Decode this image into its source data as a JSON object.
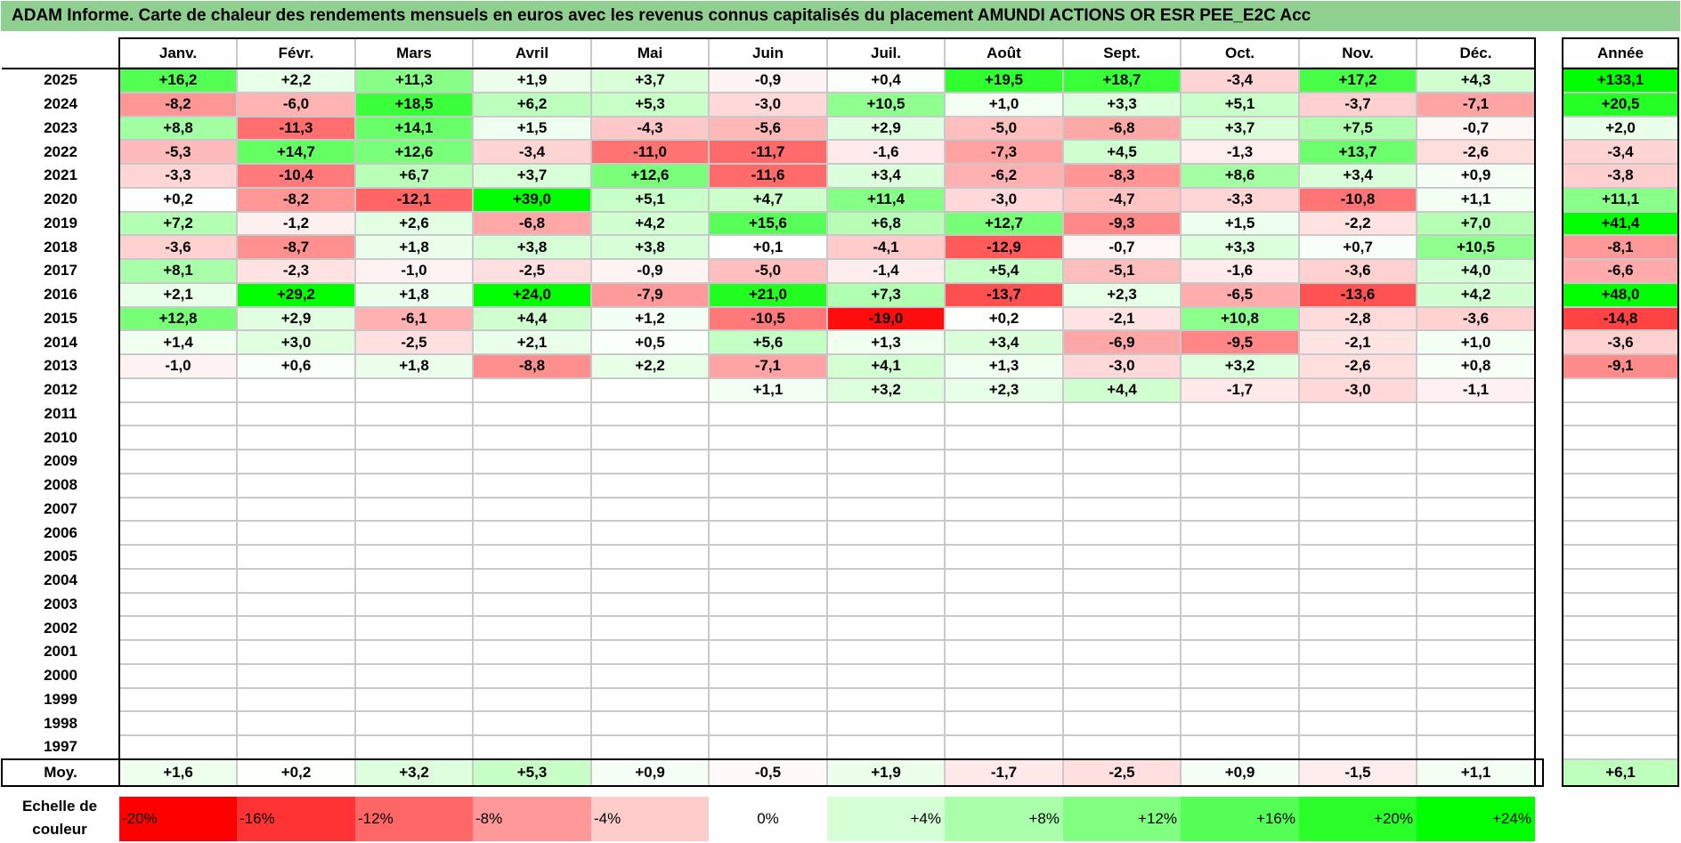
{
  "title": "ADAM Informe. Carte de chaleur des rendements mensuels en euros avec les revenus connus capitalisés du placement AMUNDI ACTIONS OR ESR PEE_E2C Acc",
  "chart_data": {
    "type": "heatmap",
    "title": "ADAM Informe. Carte de chaleur des rendements mensuels en euros avec les revenus connus capitalisés du placement AMUNDI ACTIONS OR ESR PEE_E2C Acc",
    "columns": [
      "Janv.",
      "Févr.",
      "Mars",
      "Avril",
      "Mai",
      "Juin",
      "Juil.",
      "Août",
      "Sept.",
      "Oct.",
      "Nov.",
      "Déc."
    ],
    "year_column_label": "Année",
    "years": [
      "2025",
      "2024",
      "2023",
      "2022",
      "2021",
      "2020",
      "2019",
      "2018",
      "2017",
      "2016",
      "2015",
      "2014",
      "2013",
      "2012",
      "2011",
      "2010",
      "2009",
      "2008",
      "2007",
      "2006",
      "2005",
      "2004",
      "2003",
      "2002",
      "2001",
      "2000",
      "1999",
      "1998",
      "1997"
    ],
    "values": [
      [
        "+16,2",
        "+2,2",
        "+11,3",
        "+1,9",
        "+3,7",
        "-0,9",
        "+0,4",
        "+19,5",
        "+18,7",
        "-3,4",
        "+17,2",
        "+4,3"
      ],
      [
        "-8,2",
        "-6,0",
        "+18,5",
        "+6,2",
        "+5,3",
        "-3,0",
        "+10,5",
        "+1,0",
        "+3,3",
        "+5,1",
        "-3,7",
        "-7,1"
      ],
      [
        "+8,8",
        "-11,3",
        "+14,1",
        "+1,5",
        "-4,3",
        "-5,6",
        "+2,9",
        "-5,0",
        "-6,8",
        "+3,7",
        "+7,5",
        "-0,7"
      ],
      [
        "-5,3",
        "+14,7",
        "+12,6",
        "-3,4",
        "-11,0",
        "-11,7",
        "-1,6",
        "-7,3",
        "+4,5",
        "-1,3",
        "+13,7",
        "-2,6"
      ],
      [
        "-3,3",
        "-10,4",
        "+6,7",
        "+3,7",
        "+12,6",
        "-11,6",
        "+3,4",
        "-6,2",
        "-8,3",
        "+8,6",
        "+3,4",
        "+0,9"
      ],
      [
        "+0,2",
        "-8,2",
        "-12,1",
        "+39,0",
        "+5,1",
        "+4,7",
        "+11,4",
        "-3,0",
        "-4,7",
        "-3,3",
        "-10,8",
        "+1,1"
      ],
      [
        "+7,2",
        "-1,2",
        "+2,6",
        "-6,8",
        "+4,2",
        "+15,6",
        "+6,8",
        "+12,7",
        "-9,3",
        "+1,5",
        "-2,2",
        "+7,0"
      ],
      [
        "-3,6",
        "-8,7",
        "+1,8",
        "+3,8",
        "+3,8",
        "+0,1",
        "-4,1",
        "-12,9",
        "-0,7",
        "+3,3",
        "+0,7",
        "+10,5"
      ],
      [
        "+8,1",
        "-2,3",
        "-1,0",
        "-2,5",
        "-0,9",
        "-5,0",
        "-1,4",
        "+5,4",
        "-5,1",
        "-1,6",
        "-3,6",
        "+4,0"
      ],
      [
        "+2,1",
        "+29,2",
        "+1,8",
        "+24,0",
        "-7,9",
        "+21,0",
        "+7,3",
        "-13,7",
        "+2,3",
        "-6,5",
        "-13,6",
        "+4,2"
      ],
      [
        "+12,8",
        "+2,9",
        "-6,1",
        "+4,4",
        "+1,2",
        "-10,5",
        "-19,0",
        "+0,2",
        "-2,1",
        "+10,8",
        "-2,8",
        "-3,6"
      ],
      [
        "+1,4",
        "+3,0",
        "-2,5",
        "+2,1",
        "+0,5",
        "+5,6",
        "+1,3",
        "+3,4",
        "-6,9",
        "-9,5",
        "-2,1",
        "+1,0"
      ],
      [
        "-1,0",
        "+0,6",
        "+1,8",
        "-8,8",
        "+2,2",
        "-7,1",
        "+4,1",
        "+1,3",
        "-3,0",
        "+3,2",
        "-2,6",
        "+0,8"
      ],
      [
        "",
        "",
        "",
        "",
        "",
        "+1,1",
        "+3,2",
        "+2,3",
        "+4,4",
        "-1,7",
        "-3,0",
        "-1,1"
      ],
      [
        "",
        "",
        "",
        "",
        "",
        "",
        "",
        "",
        "",
        "",
        "",
        ""
      ],
      [
        "",
        "",
        "",
        "",
        "",
        "",
        "",
        "",
        "",
        "",
        "",
        ""
      ],
      [
        "",
        "",
        "",
        "",
        "",
        "",
        "",
        "",
        "",
        "",
        "",
        ""
      ],
      [
        "",
        "",
        "",
        "",
        "",
        "",
        "",
        "",
        "",
        "",
        "",
        ""
      ],
      [
        "",
        "",
        "",
        "",
        "",
        "",
        "",
        "",
        "",
        "",
        "",
        ""
      ],
      [
        "",
        "",
        "",
        "",
        "",
        "",
        "",
        "",
        "",
        "",
        "",
        ""
      ],
      [
        "",
        "",
        "",
        "",
        "",
        "",
        "",
        "",
        "",
        "",
        "",
        ""
      ],
      [
        "",
        "",
        "",
        "",
        "",
        "",
        "",
        "",
        "",
        "",
        "",
        ""
      ],
      [
        "",
        "",
        "",
        "",
        "",
        "",
        "",
        "",
        "",
        "",
        "",
        ""
      ],
      [
        "",
        "",
        "",
        "",
        "",
        "",
        "",
        "",
        "",
        "",
        "",
        ""
      ],
      [
        "",
        "",
        "",
        "",
        "",
        "",
        "",
        "",
        "",
        "",
        "",
        ""
      ],
      [
        "",
        "",
        "",
        "",
        "",
        "",
        "",
        "",
        "",
        "",
        "",
        ""
      ],
      [
        "",
        "",
        "",
        "",
        "",
        "",
        "",
        "",
        "",
        "",
        "",
        ""
      ],
      [
        "",
        "",
        "",
        "",
        "",
        "",
        "",
        "",
        "",
        "",
        "",
        ""
      ],
      [
        "",
        "",
        "",
        "",
        "",
        "",
        "",
        "",
        "",
        "",
        "",
        ""
      ]
    ],
    "annual": [
      "+133,1",
      "+20,5",
      "+2,0",
      "-3,4",
      "-3,8",
      "+11,1",
      "+41,4",
      "-8,1",
      "-6,6",
      "+48,0",
      "-14,8",
      "-3,6",
      "-9,1",
      "",
      "",
      "",
      "",
      "",
      "",
      "",
      "",
      "",
      "",
      "",
      "",
      "",
      "",
      "",
      ""
    ],
    "average_label": "Moy.",
    "averages": [
      "+1,6",
      "+0,2",
      "+3,2",
      "+5,3",
      "+0,9",
      "-0,5",
      "+1,9",
      "-1,7",
      "-2,5",
      "+0,9",
      "-1,5",
      "+1,1"
    ],
    "average_annual": "+6,1",
    "scale_label": "Echelle de couleur",
    "scale": [
      "-20%",
      "-16%",
      "-12%",
      "-8%",
      "-4%",
      "0%",
      "+4%",
      "+8%",
      "+12%",
      "+16%",
      "+20%",
      "+24%"
    ],
    "scale_range": [
      -20,
      24
    ],
    "colors": {
      "negative": "#ff0000",
      "neutral": "#ffffff",
      "positive": "#00ff00",
      "title_bg": "#8fcf8f"
    }
  }
}
